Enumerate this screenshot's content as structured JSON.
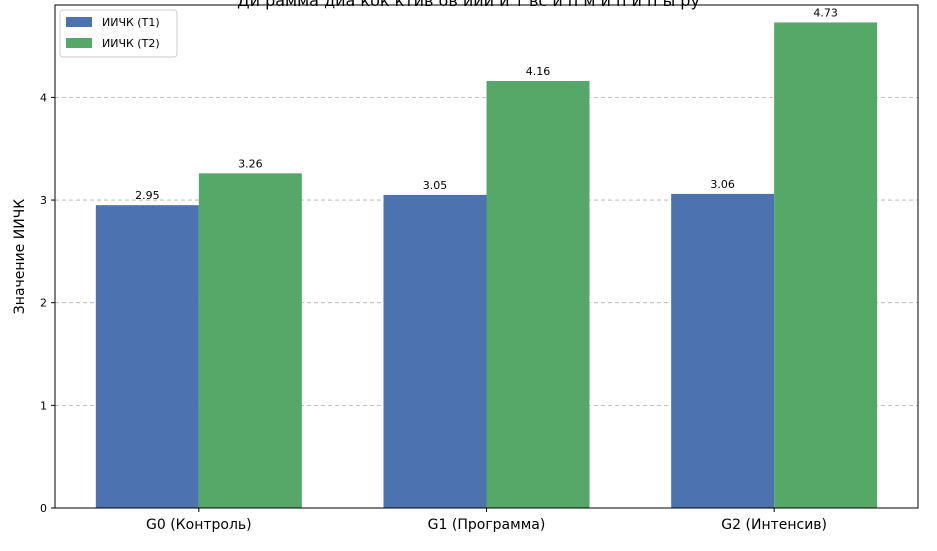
{
  "figure": {
    "title_fragment": "Ди                       рамма  диа  кок   ктив ов  иии и  т вс    и   п   м   и  п  и  п  ы  ру"
  },
  "chart_data": {
    "type": "bar",
    "categories": [
      "G0 (Контроль)",
      "G1 (Программа)",
      "G2 (Интенсив)"
    ],
    "series": [
      {
        "name": "ИИЧК (T1)",
        "values": [
          2.95,
          3.05,
          3.06
        ],
        "color": "#4c72b0"
      },
      {
        "name": "ИИЧК (T2)",
        "values": [
          3.26,
          4.16,
          4.73
        ],
        "color": "#55a868"
      }
    ],
    "data_labels": [
      [
        "2.95",
        "3.05",
        "3.06"
      ],
      [
        "3.26",
        "4.16",
        "4.73"
      ]
    ],
    "title": "",
    "xlabel": "",
    "ylabel": "Значение ИИЧК",
    "ylim": [
      0,
      4.9
    ],
    "yticks": [
      0,
      1,
      2,
      3,
      4
    ],
    "grid": "y-dashed",
    "legend_position": "top-left"
  }
}
